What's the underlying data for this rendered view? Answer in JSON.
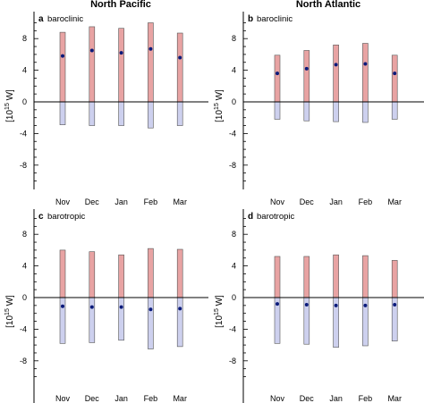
{
  "column_titles": [
    "North Pacific",
    "North Atlantic"
  ],
  "ylabel": "[10^15 W]",
  "yticks": [
    8,
    4,
    0,
    -4,
    -8
  ],
  "colors": {
    "positive_bar": "#e8a3a3",
    "negative_bar": "#cdd0ee",
    "bar_edge": "#555555",
    "dot": "#0a1a7a",
    "zero_line": "#000000"
  },
  "chart_data": [
    {
      "type": "bar",
      "panel": "a",
      "subtitle": "baroclinic",
      "title": "North Pacific",
      "categories": [
        "Nov",
        "Dec",
        "Jan",
        "Feb",
        "Mar"
      ],
      "ylim": [
        -10,
        10
      ],
      "series": [
        {
          "name": "positive",
          "values": [
            8.8,
            9.5,
            9.3,
            10.0,
            8.7
          ]
        },
        {
          "name": "negative",
          "values": [
            -2.9,
            -3.0,
            -3.0,
            -3.3,
            -3.0
          ]
        },
        {
          "name": "net",
          "values": [
            5.8,
            6.5,
            6.2,
            6.7,
            5.6
          ]
        }
      ]
    },
    {
      "type": "bar",
      "panel": "b",
      "subtitle": "baroclinic",
      "title": "North Atlantic",
      "categories": [
        "Nov",
        "Dec",
        "Jan",
        "Feb",
        "Mar"
      ],
      "ylim": [
        -10,
        10
      ],
      "series": [
        {
          "name": "positive",
          "values": [
            5.9,
            6.5,
            7.2,
            7.4,
            5.9
          ]
        },
        {
          "name": "negative",
          "values": [
            -2.2,
            -2.4,
            -2.5,
            -2.6,
            -2.2
          ]
        },
        {
          "name": "net",
          "values": [
            3.6,
            4.2,
            4.7,
            4.8,
            3.6
          ]
        }
      ]
    },
    {
      "type": "bar",
      "panel": "c",
      "subtitle": "barotropic",
      "title": "",
      "categories": [
        "Nov",
        "Dec",
        "Jan",
        "Feb",
        "Mar"
      ],
      "ylim": [
        -10,
        10
      ],
      "series": [
        {
          "name": "positive",
          "values": [
            6.0,
            5.8,
            5.4,
            6.2,
            6.1
          ]
        },
        {
          "name": "negative",
          "values": [
            -5.8,
            -5.7,
            -5.4,
            -6.5,
            -6.2
          ]
        },
        {
          "name": "net",
          "values": [
            -1.1,
            -1.2,
            -1.2,
            -1.5,
            -1.4
          ]
        }
      ]
    },
    {
      "type": "bar",
      "panel": "d",
      "subtitle": "barotropic",
      "title": "",
      "categories": [
        "Nov",
        "Dec",
        "Jan",
        "Feb",
        "Mar"
      ],
      "ylim": [
        -10,
        10
      ],
      "series": [
        {
          "name": "positive",
          "values": [
            5.2,
            5.2,
            5.4,
            5.3,
            4.7
          ]
        },
        {
          "name": "negative",
          "values": [
            -5.8,
            -5.9,
            -6.3,
            -6.1,
            -5.5
          ]
        },
        {
          "name": "net",
          "values": [
            -0.8,
            -0.9,
            -1.0,
            -1.0,
            -0.9
          ]
        }
      ]
    }
  ]
}
